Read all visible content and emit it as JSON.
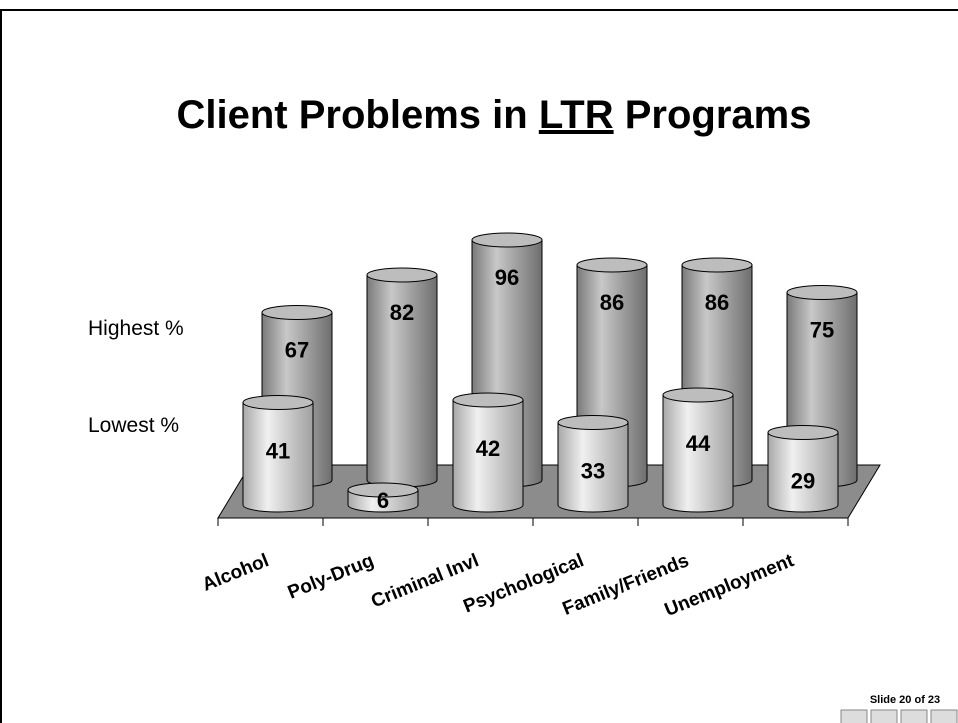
{
  "chart_data": {
    "type": "bar3d",
    "title": [
      "Client Problems in ",
      "LTR",
      " Programs"
    ],
    "categories": [
      "Alcohol",
      "Poly-Drug",
      "Criminal Invl",
      "Psychological",
      "Family/Friends",
      "Unemployment"
    ],
    "series": [
      {
        "name": "Highest %",
        "color": "#9a9a9a",
        "values": [
          67,
          82,
          96,
          86,
          86,
          75
        ]
      },
      {
        "name": "Lowest %",
        "color": "#cfcfcf",
        "values": [
          41,
          6,
          42,
          33,
          44,
          29
        ]
      }
    ],
    "ylim": [
      0,
      100
    ],
    "footer": "Slide 20 of 23"
  }
}
